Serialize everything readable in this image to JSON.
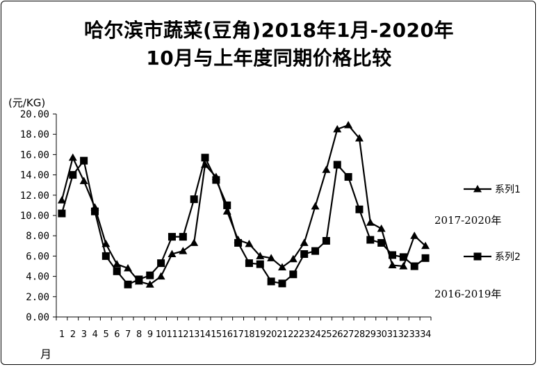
{
  "chart_data": {
    "type": "line",
    "title_line1": "哈尔滨市蔬菜(豆角)2018年1月-2020年",
    "title_line2": "10月与上年度同期价格比较",
    "ylabel": "(元/KG)",
    "xlabel": "月",
    "ylim": [
      0,
      20
    ],
    "ytick_labels": [
      "0.00",
      "2.00",
      "4.00",
      "6.00",
      "8.00",
      "10.00",
      "12.00",
      "14.00",
      "16.00",
      "18.00",
      "20.00"
    ],
    "ytick_values": [
      0,
      2,
      4,
      6,
      8,
      10,
      12,
      14,
      16,
      18,
      20
    ],
    "categories": [
      "1",
      "2",
      "3",
      "4",
      "5",
      "6",
      "7",
      "8",
      "9",
      "10",
      "11",
      "12",
      "13",
      "14",
      "15",
      "16",
      "17",
      "18",
      "19",
      "20",
      "21",
      "22",
      "23",
      "24",
      "25",
      "26",
      "27",
      "28",
      "29",
      "30",
      "31",
      "32",
      "33",
      "34"
    ],
    "series": [
      {
        "name": "系列1",
        "marker": "triangle",
        "values": [
          11.5,
          15.7,
          13.4,
          10.8,
          7.2,
          5.2,
          4.8,
          3.5,
          3.2,
          4.0,
          6.2,
          6.5,
          7.3,
          15.0,
          13.8,
          10.4,
          7.6,
          7.2,
          6.0,
          5.8,
          4.9,
          5.7,
          7.3,
          10.9,
          14.5,
          18.5,
          18.9,
          17.6,
          9.3,
          8.7,
          5.1,
          5.0,
          8.0,
          7.0
        ],
        "note": "2017-2020年"
      },
      {
        "name": "系列2",
        "marker": "square",
        "values": [
          10.2,
          14.0,
          15.4,
          10.4,
          6.0,
          4.5,
          3.2,
          3.7,
          4.1,
          5.3,
          7.9,
          7.9,
          11.6,
          15.7,
          13.5,
          11.0,
          7.3,
          5.3,
          5.2,
          3.5,
          3.3,
          4.2,
          6.2,
          6.5,
          7.5,
          15.0,
          13.8,
          10.6,
          7.6,
          7.3,
          6.1,
          5.9,
          5.0,
          5.8
        ],
        "note": "2016-2019年"
      }
    ],
    "grid": false,
    "legend": "right"
  }
}
